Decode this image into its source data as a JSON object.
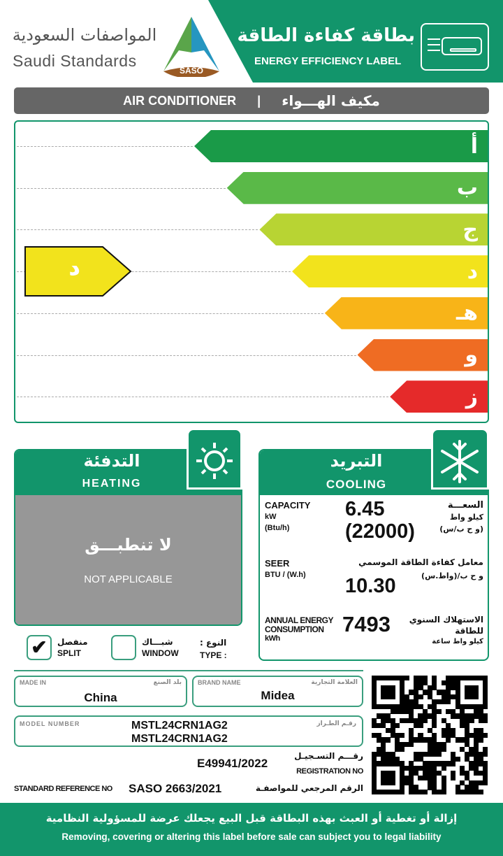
{
  "header": {
    "brand_ar": "المواصفات السعودية",
    "brand_en": "Saudi Standards",
    "logo_text": "SASO",
    "label_ar": "بطاقة كفاءة الطاقة",
    "label_en": "ENERGY EFFICIENCY LABEL",
    "icon": "air-conditioner-icon"
  },
  "product": {
    "en": "AIR CONDITIONER",
    "separator": "|",
    "ar": "مكيف الهـــواء"
  },
  "scale": {
    "classes": [
      {
        "label": "أ",
        "color": "#1a9a48"
      },
      {
        "label": "ب",
        "color": "#5ab948"
      },
      {
        "label": "ج",
        "color": "#b8d433"
      },
      {
        "label": "د",
        "color": "#f2e31c"
      },
      {
        "label": "هـ",
        "color": "#f8b418"
      },
      {
        "label": "و",
        "color": "#ef6c23"
      },
      {
        "label": "ز",
        "color": "#e52a2a"
      }
    ],
    "rating": "د",
    "rating_color": "#f2e31c"
  },
  "heating": {
    "title_ar": "التدفئة",
    "title_en": "HEATING",
    "icon": "sun-icon",
    "na_ar": "لا تنطبـــق",
    "na_en": "NOT APPLICABLE"
  },
  "cooling": {
    "title_ar": "التبريد",
    "title_en": "COOLING",
    "icon": "snowflake-icon",
    "capacity": {
      "label": "CAPACITY",
      "unit1": "kW",
      "unit2": "(Btu/h)",
      "value_kw": "6.45",
      "value_btu": "(22000)",
      "ar": "السعـــة",
      "ar_unit1": "كيلو واط",
      "ar_unit2": "(و ح ب/س)"
    },
    "seer": {
      "label": "SEER",
      "unit": "BTU / (W.h)",
      "value": "10.30",
      "ar": "معامل كفاءة الطاقة الموسمي",
      "ar_unit": "و ح ب/(واط.س)"
    },
    "annual": {
      "label1": "ANNUAL ENERGY",
      "label2": "CONSUMPTION",
      "unit": "kWh",
      "value": "7493",
      "ar1": "الاستهلاك السنوي",
      "ar2": "للطاقة",
      "ar_unit": "كيلو واط ساعة"
    }
  },
  "type": {
    "label_ar": "النوع :",
    "label_en": "TYPE :",
    "split_ar": "منفصل",
    "split_en": "SPLIT",
    "split_checked": true,
    "window_ar": "شبـــاك",
    "window_en": "WINDOW",
    "window_checked": false
  },
  "info": {
    "made_in_label": "MADE IN",
    "made_in_label_ar": "بلد الصنع",
    "made_in": "China",
    "brand_label": "BRAND  NAME",
    "brand_label_ar": "العلامة التجارية",
    "brand": "Midea",
    "model_label": "MODEL NUMBER",
    "model_label_ar": "رقـم الطـراز",
    "model1": "MSTL24CRN1AG2",
    "model2": "MSTL24CRN1AG2",
    "reg_label_ar": "رقـــم التسـجيـل",
    "reg_label": "REGISTRATION NO",
    "reg": "E49941/2022",
    "std_label": "STANDARD REFERENCE NO",
    "std": "SASO 2663/2021",
    "std_label_ar": "الرقم المرجعي للمواصفـة"
  },
  "footer": {
    "ar": "إزالة أو تغطية أو العبث بهذه البطاقة قبل البيع يجعلك عرضة للمسؤولية النظامية",
    "en": "Removing, covering or altering this label before sale can subject you to legal liability"
  }
}
